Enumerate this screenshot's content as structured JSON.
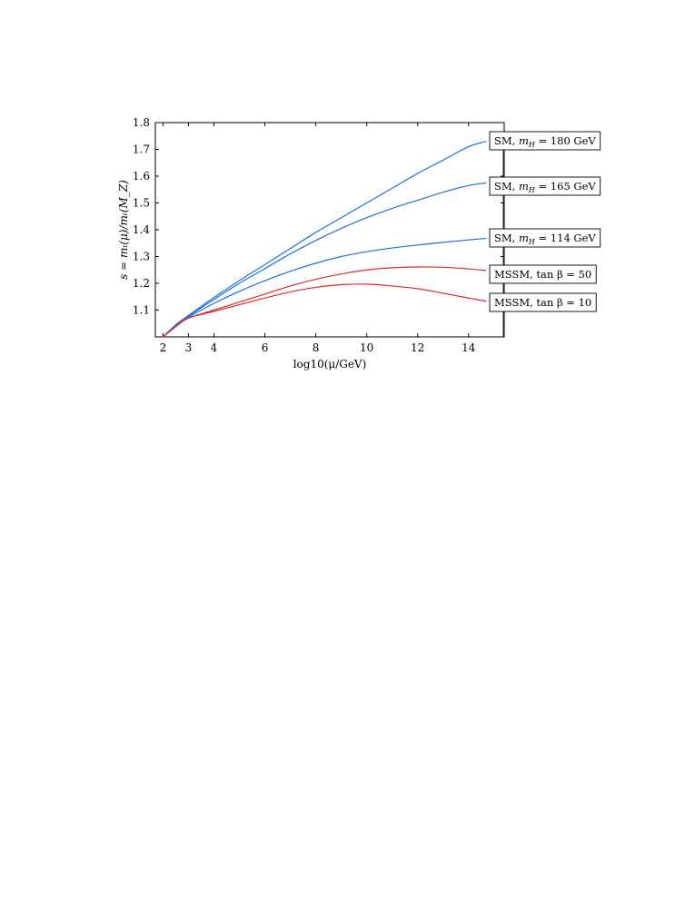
{
  "chart_data": {
    "type": "line",
    "xlabel": "log10(μ/GeV)",
    "ylabel": "s = mₜ(μ)/mₜ(M_Z)",
    "xlim": [
      1.7,
      15.4
    ],
    "ylim": [
      1.0,
      1.8
    ],
    "x_ticks": [
      2,
      3,
      4,
      6,
      8,
      10,
      12,
      14
    ],
    "y_ticks": [
      1.1,
      1.2,
      1.3,
      1.4,
      1.5,
      1.6,
      1.7,
      1.8
    ],
    "grid": false,
    "series": [
      {
        "name": "SM, m_H = 180 GeV",
        "color": "#1f6fe0",
        "x": [
          2,
          2.5,
          3,
          4,
          5,
          6,
          7,
          8,
          9,
          10,
          11,
          12,
          13,
          14,
          14.7
        ],
        "y": [
          1.0,
          1.045,
          1.08,
          1.147,
          1.21,
          1.27,
          1.33,
          1.39,
          1.445,
          1.5,
          1.555,
          1.61,
          1.66,
          1.71,
          1.73
        ]
      },
      {
        "name": "SM, m_H = 165 GeV",
        "color": "#1f6fe0",
        "x": [
          2,
          2.5,
          3,
          4,
          5,
          6,
          7,
          8,
          9,
          10,
          11,
          12,
          13,
          14,
          14.7
        ],
        "y": [
          1.0,
          1.043,
          1.077,
          1.14,
          1.2,
          1.255,
          1.31,
          1.36,
          1.405,
          1.445,
          1.48,
          1.51,
          1.54,
          1.565,
          1.575
        ]
      },
      {
        "name": "SM, m_H = 114 GeV",
        "color": "#1f6fe0",
        "x": [
          2,
          2.5,
          3,
          4,
          5,
          6,
          7,
          8,
          9,
          10,
          11,
          12,
          13,
          14,
          14.7
        ],
        "y": [
          1.0,
          1.04,
          1.073,
          1.125,
          1.17,
          1.21,
          1.245,
          1.275,
          1.3,
          1.318,
          1.332,
          1.343,
          1.353,
          1.362,
          1.368
        ]
      },
      {
        "name": "MSSM, tan β = 50",
        "color": "#e0282a",
        "x": [
          2,
          2.5,
          3,
          4,
          5,
          6,
          7,
          8,
          9,
          10,
          11,
          12,
          13,
          14,
          14.7
        ],
        "y": [
          1.0,
          1.038,
          1.07,
          1.1,
          1.13,
          1.16,
          1.19,
          1.215,
          1.235,
          1.25,
          1.258,
          1.261,
          1.26,
          1.254,
          1.248
        ]
      },
      {
        "name": "MSSM, tan β = 10",
        "color": "#e0282a",
        "x": [
          2,
          2.5,
          3,
          4,
          5,
          6,
          7,
          8,
          9,
          10,
          11,
          12,
          13,
          14,
          14.7
        ],
        "y": [
          1.0,
          1.038,
          1.07,
          1.095,
          1.12,
          1.145,
          1.168,
          1.185,
          1.195,
          1.197,
          1.19,
          1.18,
          1.163,
          1.145,
          1.133
        ]
      }
    ],
    "legend": [
      {
        "prefix": "SM,",
        "var": "m",
        "sub": "H",
        "rest": " = 180 GeV"
      },
      {
        "prefix": "SM,",
        "var": "m",
        "sub": "H",
        "rest": " = 165 GeV"
      },
      {
        "prefix": "SM,",
        "var": "m",
        "sub": "H",
        "rest": " = 114 GeV"
      },
      {
        "prefix": "MSSM,",
        "var": "tan β",
        "sub": "",
        "rest": " = 50"
      },
      {
        "prefix": "MSSM,",
        "var": "tan β",
        "sub": "",
        "rest": " = 10"
      }
    ]
  }
}
